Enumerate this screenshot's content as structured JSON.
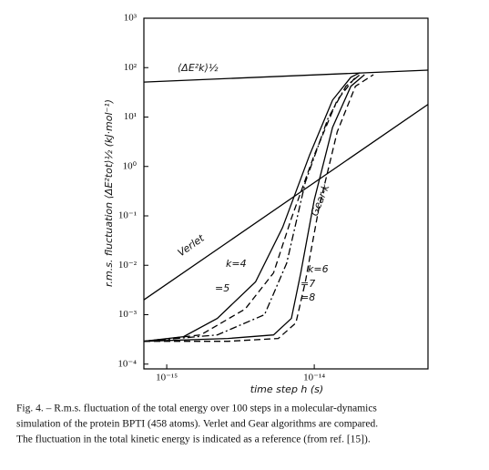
{
  "chart_data": {
    "type": "line",
    "y_label": "r.m.s. fluctuation ⟨ΔE²tot⟩½ (kJ·mol⁻¹)",
    "x_label": "time step h (s)",
    "log_x": true,
    "log_y": true,
    "xlim": [
      7e-16,
      5.9e-14
    ],
    "ylim": [
      8e-05,
      1000
    ],
    "xticks": [
      {
        "value": 1e-15,
        "label": "10⁻¹⁵"
      },
      {
        "value": 1e-14,
        "label": "10⁻¹⁴"
      }
    ],
    "yticks": [
      {
        "value": 0.0001,
        "label": "10⁻⁴"
      },
      {
        "value": 0.001,
        "label": "10⁻³"
      },
      {
        "value": 0.01,
        "label": "10⁻²"
      },
      {
        "value": 0.1,
        "label": "10⁻¹"
      },
      {
        "value": 1,
        "label": "10⁰"
      },
      {
        "value": 10,
        "label": "10¹"
      },
      {
        "value": 100,
        "label": "10²"
      },
      {
        "value": 1000,
        "label": "10³"
      }
    ],
    "annotations": [
      "Gear-k"
    ],
    "series": [
      {
        "name": "⟨ΔE²k⟩½",
        "color": "#000000",
        "dash": "none",
        "x": [
          7e-16,
          5.9e-14
        ],
        "values": [
          51,
          89
        ]
      },
      {
        "name": "Verlet",
        "color": "#000000",
        "dash": "none",
        "x": [
          7e-16,
          5.9e-14
        ],
        "values": [
          0.002,
          18
        ]
      },
      {
        "name": "k=4",
        "color": "#000000",
        "dash": "none",
        "x": [
          7e-16,
          1.3e-15,
          2.2e-15,
          4e-15,
          6.1e-15,
          9.3e-15,
          1.33e-14,
          1.77e-14,
          2.04e-14
        ],
        "values": [
          0.00029,
          0.00036,
          0.00084,
          0.0046,
          0.058,
          1.7,
          22,
          64,
          79
        ]
      },
      {
        "name": "=5",
        "color": "#000000",
        "dash": "7 4",
        "x": [
          7e-16,
          1.7e-15,
          3.4e-15,
          5.3e-15,
          7e-15,
          1e-14,
          1.43e-14,
          1.9e-14
        ],
        "values": [
          0.00029,
          0.00039,
          0.0013,
          0.007,
          0.089,
          1.7,
          22,
          64
        ]
      },
      {
        "name": "k=6",
        "color": "#000000",
        "dash": "8 3 2 3",
        "x": [
          7e-16,
          2.2e-15,
          4.6e-15,
          6.5e-15,
          8.7e-15,
          1.24e-14,
          1.64e-14,
          2.04e-14
        ],
        "values": [
          0.00029,
          0.00039,
          0.001,
          0.011,
          0.48,
          9.4,
          42,
          72
        ]
      },
      {
        "name": "=7",
        "color": "#000000",
        "dash": "none",
        "x": [
          7e-16,
          2.6e-15,
          5.3e-15,
          7e-15,
          8.1e-15,
          1e-14,
          1.33e-14,
          1.77e-14,
          2.19e-14
        ],
        "values": [
          0.00029,
          0.00033,
          0.00039,
          0.00084,
          0.007,
          0.21,
          6.2,
          42,
          72
        ]
      },
      {
        "name": "=8",
        "color": "#000000",
        "dash": "7 4",
        "x": [
          7e-16,
          2.6e-15,
          5.7e-15,
          7.5e-15,
          8.7e-15,
          1.07e-14,
          1.43e-14,
          1.9e-14,
          2.52e-14
        ],
        "values": [
          0.00029,
          0.00029,
          0.00033,
          0.00068,
          0.0046,
          0.136,
          5.0,
          42,
          72
        ]
      }
    ],
    "caption": [
      "Fig. 4. – R.m.s. fluctuation of the total energy over 100 steps in a molecular-dynamics",
      "simulation of the protein BPTI (458 atoms). Verlet and Gear algorithms are compared.",
      "The fluctuation in the total kinetic energy is indicated as a reference (from ref. [15])."
    ]
  }
}
